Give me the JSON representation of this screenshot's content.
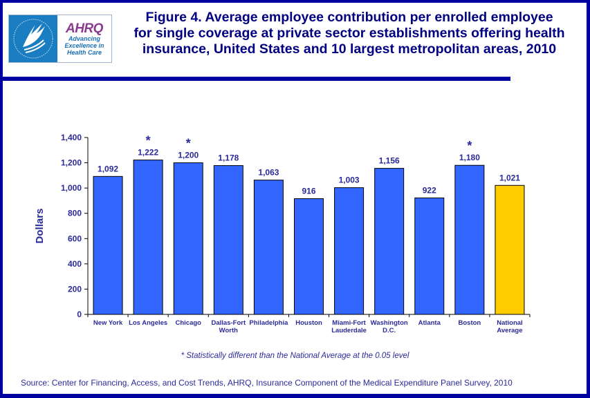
{
  "header": {
    "logo": {
      "hhs_seal": "hhs-eagle-seal",
      "brand": "AHRQ",
      "tagline": [
        "Advancing",
        "Excellence in",
        "Health Care"
      ]
    },
    "title_lines": [
      "Figure 4. Average employee contribution per enrolled employee",
      "for single coverage at private sector establishments offering health",
      "insurance, United States and 10 largest metropolitan areas, 2010"
    ]
  },
  "colors": {
    "frame": "#0000A0",
    "bar": "#3366FF",
    "highlight_bar": "#FFCC00",
    "text": "#2A2A9A",
    "title": "#000080"
  },
  "chart_data": {
    "type": "bar",
    "title": "Figure 4. Average employee contribution per enrolled employee for single coverage at private sector establishments offering health insurance, United States and 10 largest metropolitan areas, 2010",
    "xlabel": "",
    "ylabel": "Dollars",
    "ylim": [
      0,
      1400
    ],
    "yticks": [
      0,
      200,
      400,
      600,
      800,
      1000,
      1200,
      1400
    ],
    "ytick_labels": [
      "0",
      "200",
      "400",
      "600",
      "800",
      "1,000",
      "1,200",
      "1,400"
    ],
    "grid": false,
    "categories": [
      [
        "New York"
      ],
      [
        "Los Angeles"
      ],
      [
        "Chicago"
      ],
      [
        "Dallas-Fort",
        "Worth"
      ],
      [
        "Philadelphia"
      ],
      [
        "Houston"
      ],
      [
        "Miami-Fort",
        "Lauderdale"
      ],
      [
        "Washington",
        "D.C."
      ],
      [
        "Atlanta"
      ],
      [
        "Boston"
      ],
      [
        "National",
        "Average"
      ]
    ],
    "values": [
      1092,
      1222,
      1200,
      1178,
      1063,
      916,
      1003,
      1156,
      922,
      1180,
      1021
    ],
    "value_labels": [
      "1,092",
      "1,222",
      "1,200",
      "1,178",
      "1,063",
      "916",
      "1,003",
      "1,156",
      "922",
      "1,180",
      "1,021"
    ],
    "significant": [
      false,
      true,
      true,
      false,
      false,
      false,
      false,
      false,
      false,
      true,
      false
    ],
    "significance_marker": "*",
    "highlight_index": 10,
    "legend": null
  },
  "footnote": "* Statistically different than the National Average at the 0.05 level",
  "source": "Source: Center for Financing, Access, and Cost Trends, AHRQ, Insurance Component of the Medical Expenditure Panel Survey, 2010"
}
